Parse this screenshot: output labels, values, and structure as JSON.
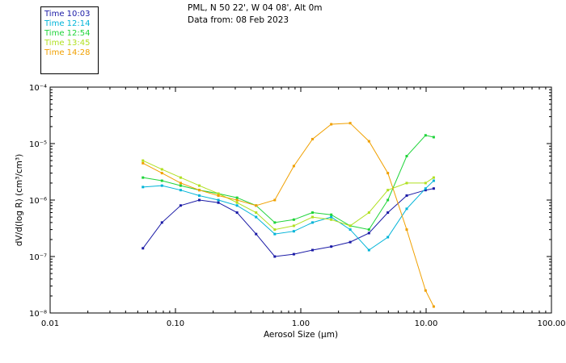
{
  "header": {
    "location": "PML, N 50 22', W 04 08', Alt 0m",
    "date_line": "Data from: 08 Feb 2023"
  },
  "chart_data": {
    "type": "line",
    "title": "PML, N 50 22', W 04 08', Alt 0m",
    "subtitle": "Data from: 08 Feb 2023",
    "xlabel": "Aerosol Size (µm)",
    "ylabel": "dV/d(log R) (cm³/cm³)",
    "xscale": "log",
    "yscale": "log",
    "xlim": [
      0.01,
      100
    ],
    "ylim": [
      1e-08,
      0.0001
    ],
    "x_ticks": [
      {
        "value": 0.01,
        "label": "0.01"
      },
      {
        "value": 0.1,
        "label": "0.10"
      },
      {
        "value": 1,
        "label": "1.00"
      },
      {
        "value": 10,
        "label": "10.00"
      },
      {
        "value": 100,
        "label": "100.00"
      }
    ],
    "y_ticks": [
      {
        "value": 1e-08,
        "label": "10⁻⁸"
      },
      {
        "value": 1e-07,
        "label": "10⁻⁷"
      },
      {
        "value": 1e-06,
        "label": "10⁻⁶"
      },
      {
        "value": 1e-05,
        "label": "10⁻⁵"
      },
      {
        "value": 0.0001,
        "label": "10⁻⁴"
      }
    ],
    "legend_position": "top-left, outside plot",
    "x": [
      0.055,
      0.078,
      0.11,
      0.155,
      0.22,
      0.31,
      0.44,
      0.62,
      0.88,
      1.24,
      1.75,
      2.48,
      3.5,
      4.95,
      7.0,
      9.9,
      11.5
    ],
    "series": [
      {
        "name": "Time 10:03",
        "color": "#1a1aa6",
        "values": [
          1.4e-07,
          4e-07,
          8e-07,
          1e-06,
          9e-07,
          6e-07,
          2.5e-07,
          1e-07,
          1.1e-07,
          1.3e-07,
          1.5e-07,
          1.8e-07,
          2.6e-07,
          6e-07,
          1.2e-06,
          1.5e-06,
          1.6e-06
        ]
      },
      {
        "name": "Time 12:14",
        "color": "#00b4d8",
        "values": [
          1.7e-06,
          1.8e-06,
          1.5e-06,
          1.2e-06,
          1e-06,
          8e-07,
          5e-07,
          2.5e-07,
          2.8e-07,
          4e-07,
          5e-07,
          3e-07,
          1.3e-07,
          2.2e-07,
          7e-07,
          1.6e-06,
          2.2e-06
        ]
      },
      {
        "name": "Time 12:54",
        "color": "#1fd43a",
        "values": [
          2.5e-06,
          2.2e-06,
          1.8e-06,
          1.5e-06,
          1.3e-06,
          1.1e-06,
          8e-07,
          4e-07,
          4.5e-07,
          6e-07,
          5.5e-07,
          3.5e-07,
          3e-07,
          1e-06,
          6e-06,
          1.4e-05,
          1.3e-05
        ]
      },
      {
        "name": "Time 13:45",
        "color": "#b0e020",
        "values": [
          5e-06,
          3.5e-06,
          2.5e-06,
          1.8e-06,
          1.3e-06,
          9e-07,
          6e-07,
          3e-07,
          3.5e-07,
          5e-07,
          4.5e-07,
          3.5e-07,
          6e-07,
          1.5e-06,
          2e-06,
          2e-06,
          2.5e-06
        ]
      },
      {
        "name": "Time 14:28",
        "color": "#f0a000",
        "values": [
          4.5e-06,
          3e-06,
          2e-06,
          1.5e-06,
          1.2e-06,
          1e-06,
          8e-07,
          1e-06,
          4e-06,
          1.2e-05,
          2.2e-05,
          2.3e-05,
          1.1e-05,
          3e-06,
          3e-07,
          2.5e-08,
          1.3e-08
        ]
      }
    ]
  }
}
